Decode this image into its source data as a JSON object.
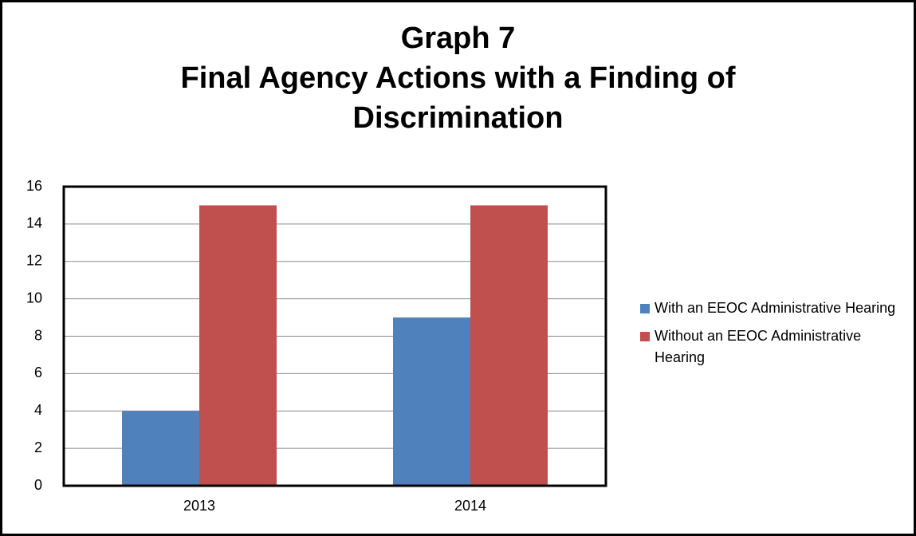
{
  "chart_data": {
    "type": "bar",
    "title": "Graph 7",
    "subtitle": "Final Agency Actions with a Finding of Discrimination",
    "categories": [
      "2013",
      "2014"
    ],
    "series": [
      {
        "name": "With an EEOC Administrative Hearing",
        "color": "#4f81bd",
        "values": [
          4,
          9
        ]
      },
      {
        "name": "Without an EEOC Administrative Hearing",
        "color": "#c0504d",
        "values": [
          15,
          15
        ]
      }
    ],
    "ylim": [
      0,
      16
    ],
    "yticks": [
      0,
      2,
      4,
      6,
      8,
      10,
      12,
      14,
      16
    ],
    "grid": true,
    "legend": "right"
  }
}
